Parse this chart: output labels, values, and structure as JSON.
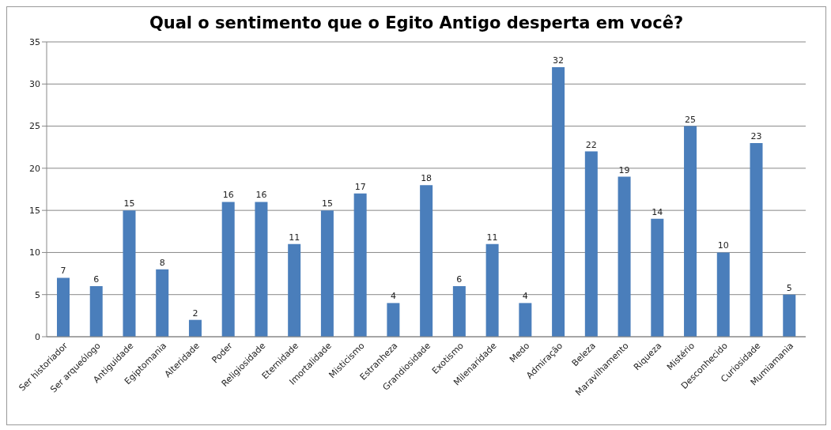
{
  "chart_data": {
    "type": "bar",
    "title": "Qual o sentimento que o Egito Antigo desperta em você?",
    "categories": [
      "Ser historiador",
      "Ser arqueólogo",
      "Antiguidade",
      "Egiptomania",
      "Alteridade",
      "Poder",
      "Religiosidade",
      "Eternidade",
      "Imortalidade",
      "Misticismo",
      "Estranheza",
      "Grandiosidade",
      "Exotismo",
      "Milenaridade",
      "Medo",
      "Admiração",
      "Beleza",
      "Maravilhamento",
      "Riqueza",
      "Mistério",
      "Desconhecido",
      "Curiosidade",
      "Mumiamania"
    ],
    "values": [
      7,
      6,
      15,
      8,
      2,
      16,
      16,
      11,
      15,
      17,
      4,
      18,
      6,
      11,
      4,
      32,
      22,
      19,
      14,
      25,
      10,
      23,
      5
    ],
    "color": "#4a7ebb",
    "ylim": [
      0,
      35
    ],
    "yticks": [
      0,
      5,
      10,
      15,
      20,
      25,
      30,
      35
    ],
    "grid": "y",
    "data_labels": true
  }
}
